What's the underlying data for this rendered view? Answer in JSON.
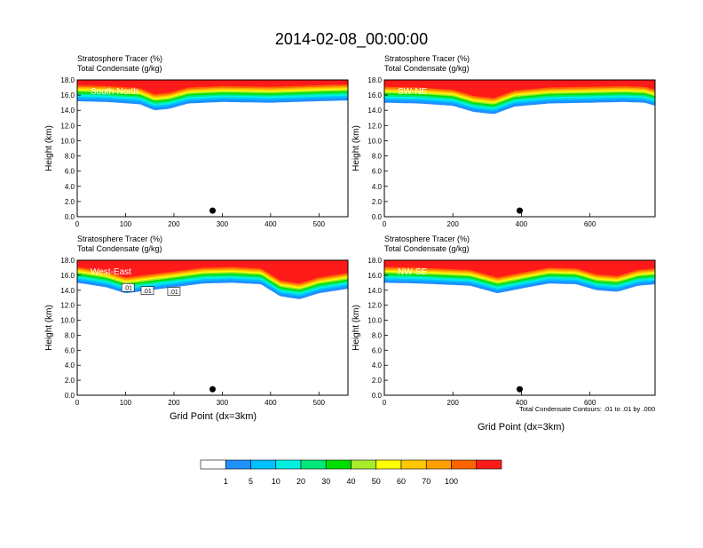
{
  "title": "2014-02-08_00:00:00",
  "panel_header_line1": "Stratosphere Tracer   (%)",
  "panel_header_line2": "Total Condensate   (g/kg)",
  "ylabel": "Height (km)",
  "xlabel": "Grid Point (dx=3km)",
  "contour_note": "Total Condensate Contours: .01 to .01 by .000",
  "colors": {
    "bins": [
      "#ffffff",
      "#1e90ff",
      "#00c0ff",
      "#00f0e0",
      "#00e87a",
      "#00e000",
      "#a8ec2c",
      "#ffff00",
      "#ffc800",
      "#ffa000",
      "#ff6400",
      "#ff1a1a"
    ]
  },
  "colorbar_labels": [
    "1",
    "5",
    "10",
    "20",
    "30",
    "40",
    "50",
    "60",
    "70",
    "100"
  ],
  "chart_data": [
    {
      "type": "heatmap",
      "panel_label": "South-North",
      "xlim": [
        0,
        560
      ],
      "ylim": [
        0,
        18
      ],
      "xticks": [
        "0",
        "100",
        "200",
        "300",
        "400",
        "500"
      ],
      "xtick_values": [
        0,
        100,
        200,
        300,
        400,
        500
      ],
      "yticks": [
        "0.0",
        "2.0",
        "4.0",
        "6.0",
        "8.0",
        "10.0",
        "12.0",
        "14.0",
        "16.0",
        "18.0"
      ],
      "tracer_base_km": [
        [
          0,
          15.2
        ],
        [
          60,
          15.1
        ],
        [
          130,
          14.8
        ],
        [
          160,
          14.0
        ],
        [
          190,
          14.2
        ],
        [
          230,
          14.9
        ],
        [
          300,
          15.1
        ],
        [
          400,
          15.0
        ],
        [
          500,
          15.2
        ],
        [
          560,
          15.3
        ]
      ],
      "marker": {
        "x": 280,
        "y": 0.8
      },
      "contour_labels": []
    },
    {
      "type": "heatmap",
      "panel_label": "SW-NE",
      "xlim": [
        0,
        790
      ],
      "ylim": [
        0,
        18
      ],
      "xticks": [
        "0",
        "200",
        "400",
        "600"
      ],
      "xtick_values": [
        0,
        200,
        400,
        600
      ],
      "yticks": [
        "0.0",
        "2.0",
        "4.0",
        "6.0",
        "8.0",
        "10.0",
        "12.0",
        "14.0",
        "16.0",
        "18.0"
      ],
      "tracer_base_km": [
        [
          0,
          15.0
        ],
        [
          100,
          14.9
        ],
        [
          200,
          14.6
        ],
        [
          260,
          13.8
        ],
        [
          320,
          13.5
        ],
        [
          380,
          14.5
        ],
        [
          480,
          14.9
        ],
        [
          600,
          15.0
        ],
        [
          700,
          15.1
        ],
        [
          760,
          15.0
        ],
        [
          790,
          14.6
        ]
      ],
      "marker": {
        "x": 395,
        "y": 0.8
      },
      "contour_labels": []
    },
    {
      "type": "heatmap",
      "panel_label": "West-East",
      "xlim": [
        0,
        560
      ],
      "ylim": [
        0,
        18
      ],
      "xticks": [
        "0",
        "100",
        "200",
        "300",
        "400",
        "500"
      ],
      "xtick_values": [
        0,
        100,
        200,
        300,
        400,
        500
      ],
      "yticks": [
        "0.0",
        "2.0",
        "4.0",
        "6.0",
        "8.0",
        "10.0",
        "12.0",
        "14.0",
        "16.0",
        "18.0"
      ],
      "tracer_base_km": [
        [
          0,
          15.0
        ],
        [
          60,
          14.4
        ],
        [
          100,
          13.6
        ],
        [
          150,
          14.0
        ],
        [
          200,
          14.4
        ],
        [
          260,
          14.9
        ],
        [
          320,
          15.0
        ],
        [
          380,
          14.8
        ],
        [
          420,
          13.2
        ],
        [
          460,
          12.8
        ],
        [
          500,
          13.6
        ],
        [
          560,
          14.2
        ]
      ],
      "marker": {
        "x": 280,
        "y": 0.8
      },
      "contour_labels": [
        {
          "text": ".01",
          "x": 105,
          "y": 14.3
        },
        {
          "text": ".01",
          "x": 145,
          "y": 13.9
        },
        {
          "text": ".01",
          "x": 200,
          "y": 13.8
        }
      ]
    },
    {
      "type": "heatmap",
      "panel_label": "NW-SE",
      "xlim": [
        0,
        790
      ],
      "ylim": [
        0,
        18
      ],
      "xticks": [
        "0",
        "200",
        "400",
        "600"
      ],
      "xtick_values": [
        0,
        200,
        400,
        600
      ],
      "yticks": [
        "0.0",
        "2.0",
        "4.0",
        "6.0",
        "8.0",
        "10.0",
        "12.0",
        "14.0",
        "16.0",
        "18.0"
      ],
      "tracer_base_km": [
        [
          0,
          15.0
        ],
        [
          100,
          14.9
        ],
        [
          250,
          14.6
        ],
        [
          330,
          13.6
        ],
        [
          420,
          14.4
        ],
        [
          480,
          14.9
        ],
        [
          560,
          14.8
        ],
        [
          620,
          14.0
        ],
        [
          680,
          13.8
        ],
        [
          740,
          14.6
        ],
        [
          790,
          14.8
        ]
      ],
      "marker": {
        "x": 395,
        "y": 0.8
      },
      "contour_labels": []
    }
  ]
}
